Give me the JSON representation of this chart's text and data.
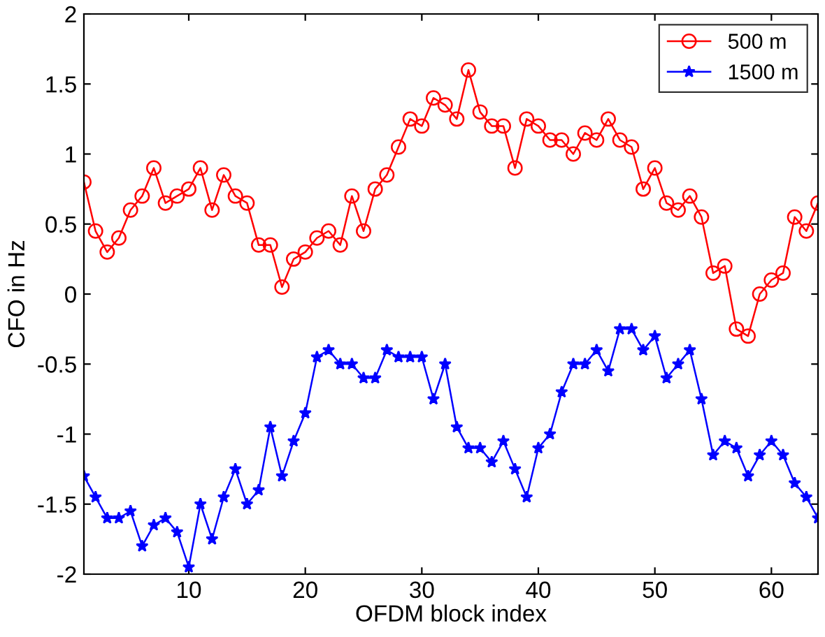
{
  "chart_data": {
    "type": "line",
    "xlabel": "OFDM block index",
    "ylabel": "CFO in Hz",
    "x": [
      1,
      2,
      3,
      4,
      5,
      6,
      7,
      8,
      9,
      10,
      11,
      12,
      13,
      14,
      15,
      16,
      17,
      18,
      19,
      20,
      21,
      22,
      23,
      24,
      25,
      26,
      27,
      28,
      29,
      30,
      31,
      32,
      33,
      34,
      35,
      36,
      37,
      38,
      39,
      40,
      41,
      42,
      43,
      44,
      45,
      46,
      47,
      48,
      49,
      50,
      51,
      52,
      53,
      54,
      55,
      56,
      57,
      58,
      59,
      60,
      61,
      62,
      63,
      64
    ],
    "series": [
      {
        "name": "500 m",
        "color": "#ff0000",
        "marker": "circle",
        "values": [
          0.8,
          0.45,
          0.3,
          0.4,
          0.6,
          0.7,
          0.9,
          0.65,
          0.7,
          0.75,
          0.9,
          0.6,
          0.85,
          0.7,
          0.65,
          0.35,
          0.35,
          0.05,
          0.25,
          0.3,
          0.4,
          0.45,
          0.35,
          0.7,
          0.45,
          0.75,
          0.85,
          1.05,
          1.25,
          1.2,
          1.4,
          1.35,
          1.25,
          1.6,
          1.3,
          1.2,
          1.2,
          0.9,
          1.25,
          1.2,
          1.1,
          1.1,
          1.0,
          1.15,
          1.1,
          1.25,
          1.1,
          1.05,
          0.75,
          0.9,
          0.65,
          0.6,
          0.7,
          0.55,
          0.15,
          0.2,
          -0.25,
          -0.3,
          0.0,
          0.1,
          0.15,
          0.55,
          0.45,
          0.65
        ]
      },
      {
        "name": "1500 m",
        "color": "#0000ff",
        "marker": "star",
        "values": [
          -1.3,
          -1.45,
          -1.6,
          -1.6,
          -1.55,
          -1.8,
          -1.65,
          -1.6,
          -1.7,
          -1.95,
          -1.5,
          -1.75,
          -1.45,
          -1.25,
          -1.5,
          -1.4,
          -0.95,
          -1.3,
          -1.05,
          -0.85,
          -0.45,
          -0.4,
          -0.5,
          -0.5,
          -0.6,
          -0.6,
          -0.4,
          -0.45,
          -0.45,
          -0.45,
          -0.75,
          -0.5,
          -0.95,
          -1.1,
          -1.1,
          -1.2,
          -1.05,
          -1.25,
          -1.45,
          -1.1,
          -1.0,
          -0.7,
          -0.5,
          -0.5,
          -0.4,
          -0.55,
          -0.25,
          -0.25,
          -0.4,
          -0.3,
          -0.6,
          -0.5,
          -0.4,
          -0.75,
          -1.15,
          -1.05,
          -1.1,
          -1.3,
          -1.15,
          -1.05,
          -1.15,
          -1.35,
          -1.45,
          -1.6
        ]
      }
    ],
    "xlim": [
      1,
      64
    ],
    "xticks": [
      10,
      20,
      30,
      40,
      50,
      60
    ],
    "ylim": [
      -2,
      2
    ],
    "yticks": [
      -2,
      -1.5,
      -1,
      -0.5,
      0,
      0.5,
      1,
      1.5,
      2
    ],
    "grid": false,
    "legend": "top right",
    "line_style": "solid"
  }
}
